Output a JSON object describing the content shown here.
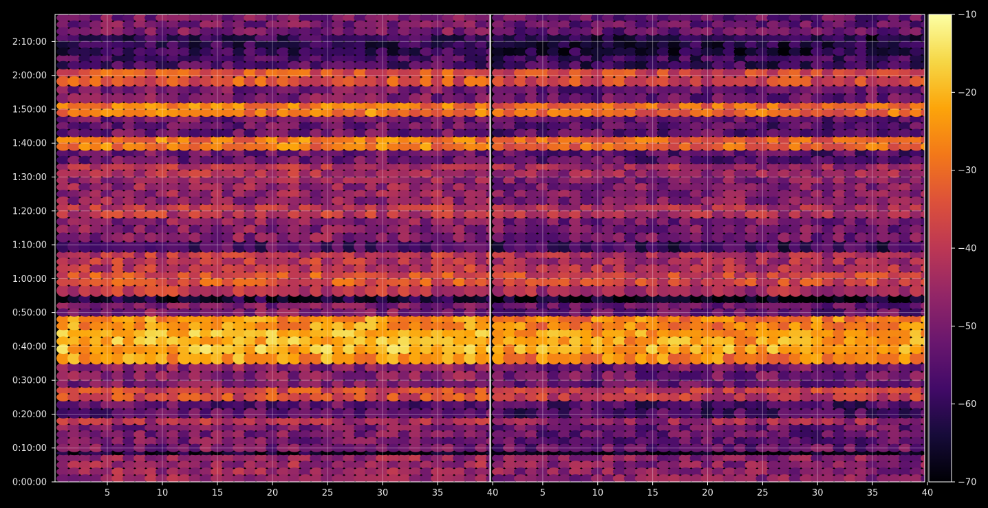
{
  "chart_data": {
    "type": "heatmap",
    "title": "",
    "xlabel": "",
    "ylabel": "",
    "grid": true,
    "colormap": "inferno",
    "background": "#000000",
    "panels": [
      {
        "name": "",
        "xlim": [
          1,
          40
        ],
        "x_ticks": [
          "5",
          "10",
          "15",
          "20",
          "25",
          "30",
          "35",
          "40"
        ],
        "x_tick_values": [
          5,
          10,
          15,
          20,
          25,
          30,
          35,
          40
        ]
      },
      {
        "name": "",
        "xlim": [
          1,
          40
        ],
        "x_ticks": [
          "5",
          "10",
          "15",
          "20",
          "25",
          "30",
          "35",
          "40"
        ],
        "x_tick_values": [
          5,
          10,
          15,
          20,
          25,
          30,
          35,
          40
        ]
      }
    ],
    "y_ticks": [
      "0:00:00",
      "0:10:00",
      "0:20:00",
      "0:30:00",
      "0:40:00",
      "0:50:00",
      "1:00:00",
      "1:10:00",
      "1:20:00",
      "1:30:00",
      "1:40:00",
      "1:50:00",
      "2:00:00",
      "2:10:00"
    ],
    "y_tick_minutes": [
      0,
      10,
      20,
      30,
      40,
      50,
      60,
      70,
      80,
      90,
      100,
      110,
      120,
      130
    ],
    "ylim_minutes": [
      0,
      138
    ],
    "colorbar": {
      "ticks": [
        "−10",
        "−20",
        "−30",
        "−40",
        "−50",
        "−60",
        "−70"
      ],
      "tick_values": [
        -10,
        -20,
        -30,
        -40,
        -50,
        -60,
        -70
      ],
      "range": [
        -70,
        -10
      ]
    },
    "bands": [
      {
        "minutes": [
          0,
          8
        ],
        "level": -45
      },
      {
        "minutes": [
          8,
          9
        ],
        "level": -66
      },
      {
        "minutes": [
          9,
          17
        ],
        "level": -50
      },
      {
        "minutes": [
          17,
          19
        ],
        "level": -42
      },
      {
        "minutes": [
          19,
          24
        ],
        "level": -54
      },
      {
        "minutes": [
          24,
          28
        ],
        "level": -36
      },
      {
        "minutes": [
          28,
          30
        ],
        "level": -50
      },
      {
        "minutes": [
          30,
          35
        ],
        "level": -48
      },
      {
        "minutes": [
          35,
          38
        ],
        "level": -24
      },
      {
        "minutes": [
          38,
          45
        ],
        "level": -20
      },
      {
        "minutes": [
          45,
          49
        ],
        "level": -24
      },
      {
        "minutes": [
          49,
          53
        ],
        "level": -50
      },
      {
        "minutes": [
          53,
          55
        ],
        "level": -64
      },
      {
        "minutes": [
          55,
          58
        ],
        "level": -40
      },
      {
        "minutes": [
          58,
          62
        ],
        "level": -34
      },
      {
        "minutes": [
          62,
          68
        ],
        "level": -40
      },
      {
        "minutes": [
          68,
          71
        ],
        "level": -56
      },
      {
        "minutes": [
          71,
          78
        ],
        "level": -48
      },
      {
        "minutes": [
          78,
          82
        ],
        "level": -40
      },
      {
        "minutes": [
          82,
          90
        ],
        "level": -46
      },
      {
        "minutes": [
          90,
          94
        ],
        "level": -42
      },
      {
        "minutes": [
          94,
          98
        ],
        "level": -52
      },
      {
        "minutes": [
          98,
          102
        ],
        "level": -28
      },
      {
        "minutes": [
          102,
          108
        ],
        "level": -52
      },
      {
        "minutes": [
          108,
          112
        ],
        "level": -28
      },
      {
        "minutes": [
          112,
          117
        ],
        "level": -50
      },
      {
        "minutes": [
          117,
          122
        ],
        "level": -34
      },
      {
        "minutes": [
          122,
          126
        ],
        "level": -56
      },
      {
        "minutes": [
          126,
          132
        ],
        "level": -60
      },
      {
        "minutes": [
          132,
          138
        ],
        "level": -50
      }
    ]
  }
}
